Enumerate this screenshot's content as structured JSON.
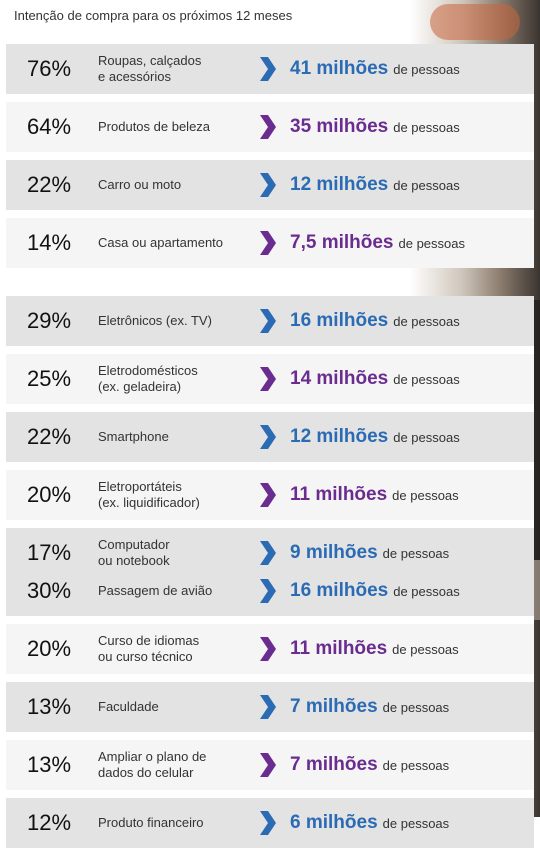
{
  "title": "Intenção de compra para os próximos 12 meses",
  "colors": {
    "blue": "#2a6bb4",
    "purple": "#6a2d8f"
  },
  "chart_data": {
    "type": "table",
    "title": "Intenção de compra para os próximos 12 meses",
    "suffix": "de pessoas",
    "groups": [
      {
        "rows": [
          {
            "pct": "76%",
            "label": "Roupas, calçados\ne acessórios",
            "value": "41 milhões",
            "color": "blue"
          },
          {
            "pct": "64%",
            "label": "Produtos de beleza",
            "value": "35 milhões",
            "color": "purple"
          },
          {
            "pct": "22%",
            "label": "Carro ou moto",
            "value": "12 milhões",
            "color": "blue"
          },
          {
            "pct": "14%",
            "label": "Casa ou apartamento",
            "value": "7,5 milhões",
            "color": "purple"
          }
        ]
      },
      {
        "rows": [
          {
            "pct": "29%",
            "label": "Eletrônicos (ex. TV)",
            "value": "16 milhões",
            "color": "blue"
          },
          {
            "pct": "25%",
            "label": "Eletrodomésticos\n(ex. geladeira)",
            "value": "14 milhões",
            "color": "purple"
          },
          {
            "pct": "22%",
            "label": "Smartphone",
            "value": "12 milhões",
            "color": "blue"
          },
          {
            "pct": "20%",
            "label": "Eletroportáteis\n(ex. liquidificador)",
            "value": "11 milhões",
            "color": "purple"
          },
          {
            "pct": "17%",
            "label": "Computador\nou notebook",
            "value": "9 milhões",
            "color": "blue"
          }
        ]
      },
      {
        "rows": [
          {
            "pct": "30%",
            "label": "Passagem de avião",
            "value": "16 milhões",
            "color": "blue"
          },
          {
            "pct": "20%",
            "label": "Curso de idiomas\nou curso técnico",
            "value": "11 milhões",
            "color": "purple"
          },
          {
            "pct": "13%",
            "label": "Faculdade",
            "value": "7 milhões",
            "color": "blue"
          },
          {
            "pct": "13%",
            "label": "Ampliar o plano de\ndados do celular",
            "value": "7 milhões",
            "color": "purple"
          },
          {
            "pct": "12%",
            "label": "Produto financeiro",
            "value": "6 milhões",
            "color": "blue"
          }
        ]
      }
    ]
  }
}
